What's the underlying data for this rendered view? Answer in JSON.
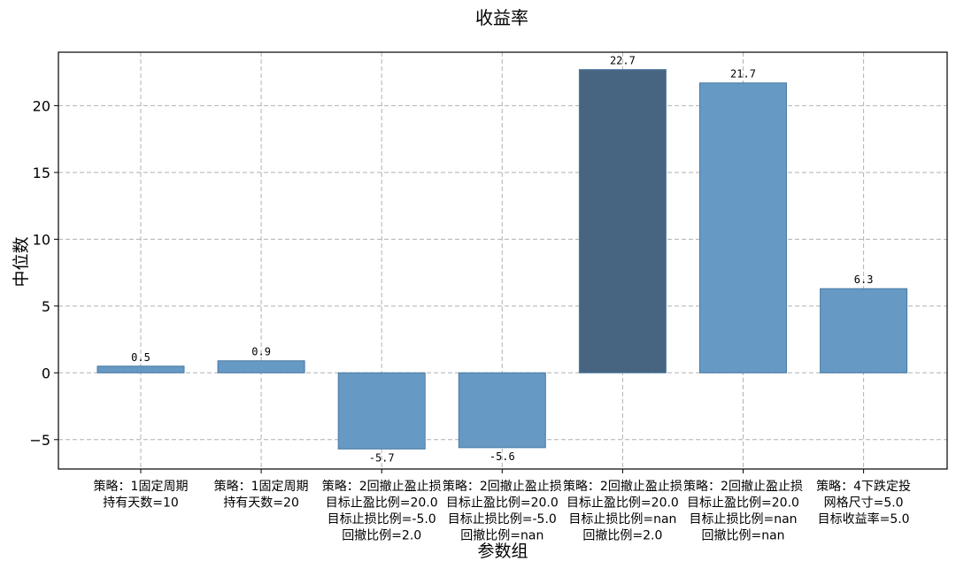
{
  "chart_data": {
    "type": "bar",
    "title": "收益率",
    "xlabel": "参数组",
    "ylabel": "中位数",
    "ylim": [
      -7.2,
      24.0
    ],
    "yticks": [
      -5,
      0,
      5,
      10,
      15,
      20
    ],
    "grid": true,
    "categories": [
      [
        "策略：1固定周期",
        "持有天数=10"
      ],
      [
        "策略：1固定周期",
        "持有天数=20"
      ],
      [
        "策略：2回撤止盈止损",
        "目标止盈比例=20.0",
        "目标止损比例=-5.0",
        "回撤比例=2.0"
      ],
      [
        "策略：2回撤止盈止损",
        "目标止盈比例=20.0",
        "目标止损比例=-5.0",
        "回撤比例=nan"
      ],
      [
        "策略：2回撤止盈止损",
        "目标止盈比例=20.0",
        "目标止损比例=nan",
        "回撤比例=2.0"
      ],
      [
        "策略：2回撤止盈止损",
        "目标止盈比例=20.0",
        "目标止损比例=nan",
        "回撤比例=nan"
      ],
      [
        "策略：4下跌定投",
        "网格尺寸=5.0",
        "目标收益率=5.0"
      ]
    ],
    "values": [
      0.5,
      0.9,
      -5.7,
      -5.6,
      22.7,
      21.7,
      6.3
    ],
    "value_labels": [
      "0.5",
      "0.9",
      "-5.7",
      "-5.6",
      "22.7",
      "21.7",
      "6.3"
    ],
    "highlight_index": 4,
    "colors": {
      "bar": "#6699c4",
      "highlight": "#476581",
      "edge": "#4a7aa3"
    }
  }
}
